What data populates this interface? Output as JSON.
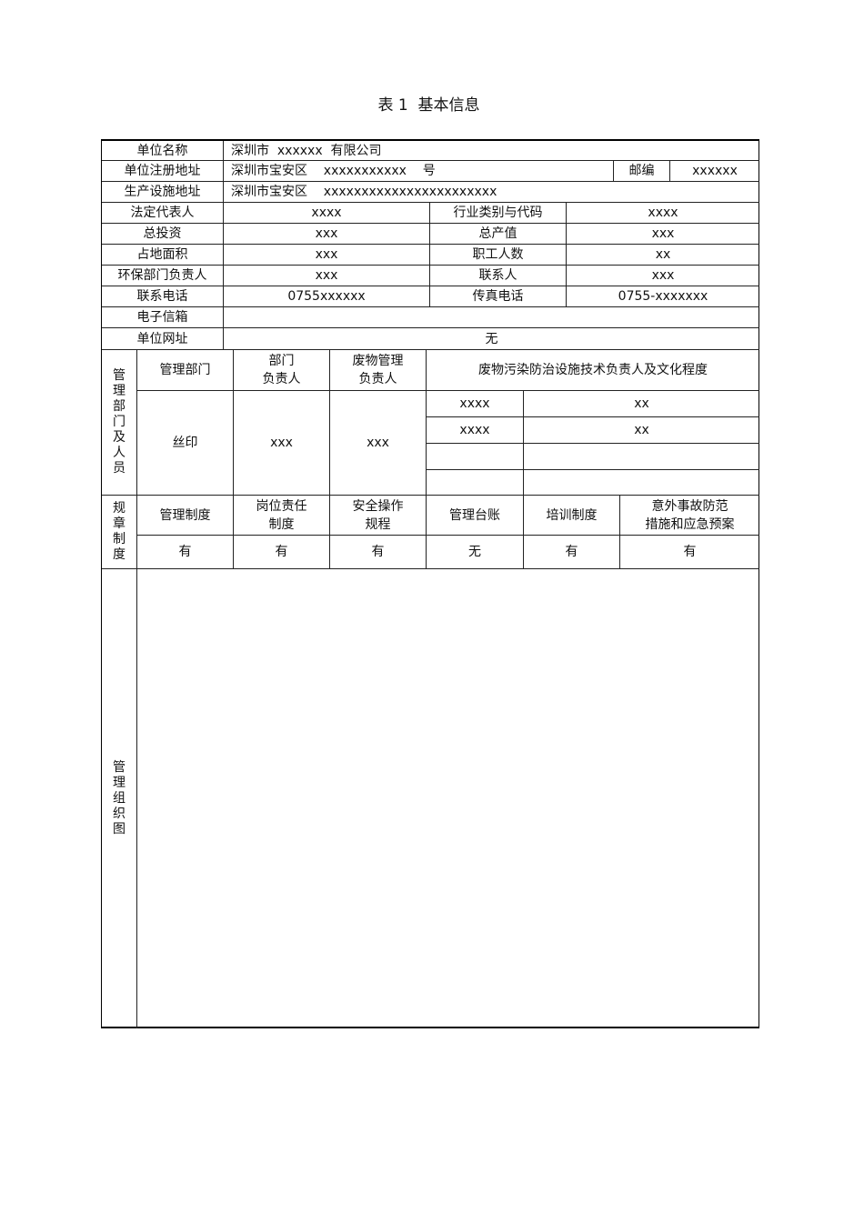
{
  "title": "表 1  基本信息",
  "basic": {
    "name_label": "单位名称",
    "name_value": "深圳市  xxxxxx  有限公司",
    "reg_addr_label": "单位注册地址",
    "reg_addr_value": "深圳市宝安区    xxxxxxxxxxx    号",
    "zip_label": "邮编",
    "zip_value": "xxxxxx",
    "prod_addr_label": "生产设施地址",
    "prod_addr_value": "深圳市宝安区    xxxxxxxxxxxxxxxxxxxxxxx",
    "rows": [
      {
        "l1": "法定代表人",
        "v1": "xxxx",
        "l2": "行业类别与代码",
        "v2": "xxxx"
      },
      {
        "l1": "总投资",
        "v1": "xxx",
        "l2": "总产值",
        "v2": "xxx"
      },
      {
        "l1": "占地面积",
        "v1": "xxx",
        "l2": "职工人数",
        "v2": "xx"
      },
      {
        "l1": "环保部门负责人",
        "v1": "xxx",
        "l2": "联系人",
        "v2": "xxx"
      },
      {
        "l1": "联系电话",
        "v1": "0755xxxxxx",
        "l2": "传真电话",
        "v2": "0755-xxxxxxx"
      }
    ],
    "email_label": "电子信箱",
    "email_value": "",
    "website_label": "单位网址",
    "website_value": "无"
  },
  "mgmt": {
    "section_label": "管理部门及人员",
    "headers": [
      "管理部门",
      "部门\n负责人",
      "废物管理\n负责人",
      "废物污染防治设施技术负责人及文化程度"
    ],
    "dept": "丝印",
    "dept_head": "xxx",
    "waste_head": "xxx",
    "tech": [
      {
        "name": "xxxx",
        "edu": "xx"
      },
      {
        "name": "xxxx",
        "edu": "xx"
      },
      {
        "name": "",
        "edu": ""
      },
      {
        "name": "",
        "edu": ""
      }
    ]
  },
  "rules": {
    "section_label": "规章制度",
    "headers": [
      "管理制度",
      "岗位责任\n制度",
      "安全操作\n规程",
      "管理台账",
      "培训制度",
      "意外事故防范\n措施和应急预案"
    ],
    "values": [
      "有",
      "有",
      "有",
      "无",
      "有",
      "有"
    ]
  },
  "org": {
    "section_label": "管理组织图"
  }
}
